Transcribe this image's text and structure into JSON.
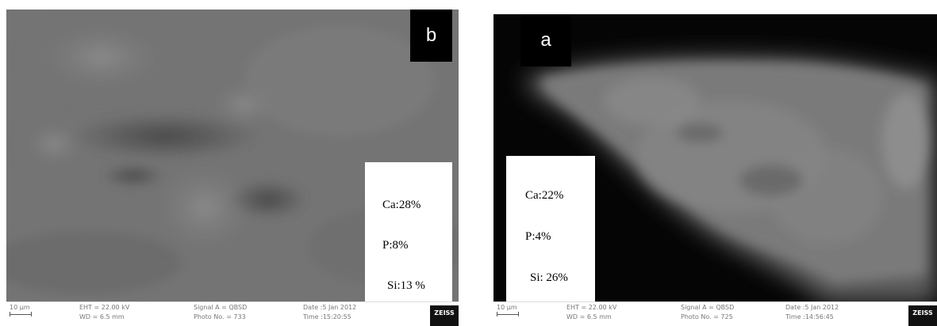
{
  "panel_b": {
    "letter": "b",
    "eds": {
      "ca": "Ca:28%",
      "p": "P:8%",
      "si": "Si:13 %"
    },
    "databar": {
      "scale": "10 µm",
      "eht": "EHT = 22.00 kV",
      "wd": "WD = 6.5 mm",
      "signal": "Signal A = QBSD",
      "photo": "Photo No. = 733",
      "date": "Date :5 Jan 2012",
      "time": "Time :15:20:55"
    },
    "logo": "ZEISS"
  },
  "panel_a": {
    "letter": "a",
    "eds": {
      "ca": "Ca:22%",
      "p": "P:4%",
      "si": "Si: 26%"
    },
    "databar": {
      "scale": "10 µm",
      "eht": "EHT = 22.00 kV",
      "wd": "WD = 6.5 mm",
      "signal": "Signal A = QBSD",
      "photo": "Photo No. = 725",
      "date": "Date :5 Jan 2012",
      "time": "Time :14:56:45"
    },
    "logo": "ZEISS"
  }
}
